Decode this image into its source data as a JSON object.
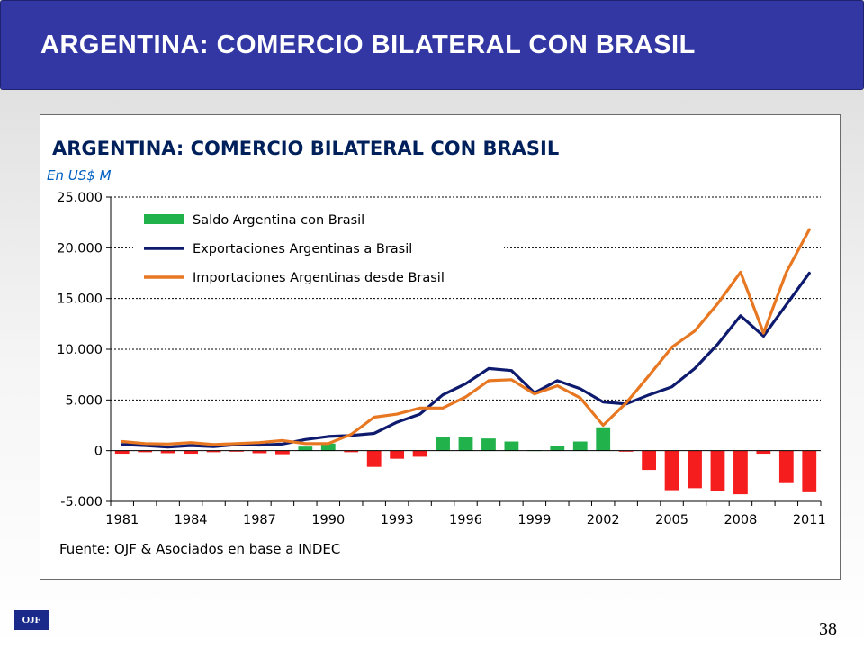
{
  "slide": {
    "title": "ARGENTINA: COMERCIO BILATERAL CON BRASIL",
    "page_number": "38",
    "logo_text": "OJF"
  },
  "chart_data": {
    "type": "bar",
    "title": "ARGENTINA: COMERCIO BILATERAL CON BRASIL",
    "subtitle": "En US$ M",
    "source": "Fuente: OJF & Asociados en base a INDEC",
    "x": [
      1981,
      1982,
      1983,
      1984,
      1985,
      1986,
      1987,
      1988,
      1989,
      1990,
      1991,
      1992,
      1993,
      1994,
      1995,
      1996,
      1997,
      1998,
      1999,
      2000,
      2001,
      2002,
      2003,
      2004,
      2005,
      2006,
      2007,
      2008,
      2009,
      2010,
      2011
    ],
    "x_tick_labels": [
      "1981",
      "1984",
      "1987",
      "1990",
      "1993",
      "1996",
      "1999",
      "2002",
      "2005",
      "2008",
      "2011"
    ],
    "y_tick_labels": [
      "25.000",
      "20.000",
      "15.000",
      "10.000",
      "5.000",
      "0",
      "-5.000"
    ],
    "ylim": [
      -5000,
      25000
    ],
    "grid": "horizontal dotted",
    "legend_position": "top-left",
    "series": [
      {
        "name": "Saldo Argentina con Brasil",
        "kind": "bar",
        "color_positive": "#21b24b",
        "color_negative": "#f51d1d",
        "values": [
          -300,
          -150,
          -250,
          -300,
          -150,
          -100,
          -250,
          -350,
          400,
          700,
          -150,
          -1600,
          -800,
          -600,
          1300,
          1300,
          1200,
          900,
          50,
          500,
          900,
          2300,
          -100,
          -1900,
          -3900,
          -3700,
          -4000,
          -4300,
          -300,
          -3200,
          -4100
        ]
      },
      {
        "name": "Exportaciones Argentinas a Brasil",
        "kind": "line",
        "color": "#0d1a6e",
        "values": [
          600,
          500,
          350,
          500,
          400,
          600,
          550,
          650,
          1100,
          1400,
          1500,
          1700,
          2800,
          3600,
          5500,
          6600,
          8100,
          7900,
          5700,
          6900,
          6100,
          4800,
          4600,
          5500,
          6300,
          8100,
          10500,
          13300,
          11300,
          14400,
          17500
        ]
      },
      {
        "name": "Importaciones Argentinas desde Brasil",
        "kind": "line",
        "color": "#e87722",
        "values": [
          900,
          700,
          650,
          800,
          600,
          700,
          800,
          1000,
          700,
          700,
          1600,
          3300,
          3600,
          4200,
          4200,
          5300,
          6900,
          7000,
          5600,
          6400,
          5200,
          2500,
          4700,
          7400,
          10200,
          11800,
          14500,
          17600,
          11600,
          17600,
          21800
        ]
      }
    ]
  }
}
